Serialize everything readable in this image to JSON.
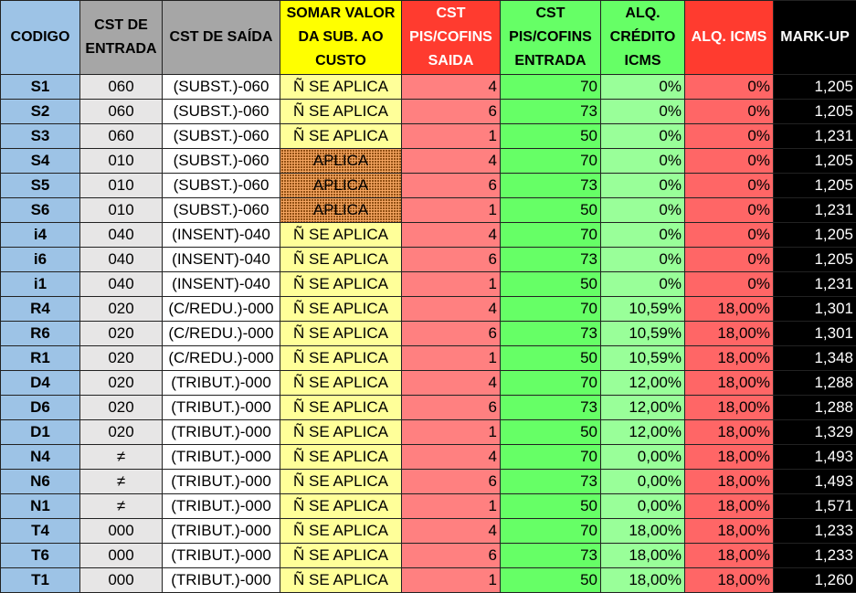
{
  "headers": {
    "codigo": "CODIGO",
    "cst_entrada": "CST DE ENTRADA",
    "cst_saida": "CST  DE SAÍDA",
    "somar": "SOMAR VALOR DA SUB. AO CUSTO",
    "cst_piscofins_saida": "CST PIS/COFINS SAIDA",
    "cst_piscofins_entrada": "CST PIS/COFINS ENTRADA",
    "alq_credito_icms": "ALQ. CRÉDITO ICMS",
    "alq_icms": "ALQ. ICMS",
    "markup": "MARK-UP"
  },
  "rows": [
    {
      "codigo": "S1",
      "cst_entrada": "060",
      "cst_saida": "(SUBST.)-060",
      "somar": "Ñ SE APLICA",
      "cst_piscofins_saida": "4",
      "cst_piscofins_entrada": "70",
      "alq_credito_icms": "0%",
      "alq_icms": "0%",
      "markup": "1,205"
    },
    {
      "codigo": "S2",
      "cst_entrada": "060",
      "cst_saida": "(SUBST.)-060",
      "somar": "Ñ SE APLICA",
      "cst_piscofins_saida": "6",
      "cst_piscofins_entrada": "73",
      "alq_credito_icms": "0%",
      "alq_icms": "0%",
      "markup": "1,205"
    },
    {
      "codigo": "S3",
      "cst_entrada": "060",
      "cst_saida": "(SUBST.)-060",
      "somar": "Ñ SE APLICA",
      "cst_piscofins_saida": "1",
      "cst_piscofins_entrada": "50",
      "alq_credito_icms": "0%",
      "alq_icms": "0%",
      "markup": "1,231"
    },
    {
      "codigo": "S4",
      "cst_entrada": "010",
      "cst_saida": "(SUBST.)-060",
      "somar": "APLICA",
      "cst_piscofins_saida": "4",
      "cst_piscofins_entrada": "70",
      "alq_credito_icms": "0%",
      "alq_icms": "0%",
      "markup": "1,205"
    },
    {
      "codigo": "S5",
      "cst_entrada": "010",
      "cst_saida": "(SUBST.)-060",
      "somar": "APLICA",
      "cst_piscofins_saida": "6",
      "cst_piscofins_entrada": "73",
      "alq_credito_icms": "0%",
      "alq_icms": "0%",
      "markup": "1,205"
    },
    {
      "codigo": "S6",
      "cst_entrada": "010",
      "cst_saida": "(SUBST.)-060",
      "somar": "APLICA",
      "cst_piscofins_saida": "1",
      "cst_piscofins_entrada": "50",
      "alq_credito_icms": "0%",
      "alq_icms": "0%",
      "markup": "1,231"
    },
    {
      "codigo": "i4",
      "cst_entrada": "040",
      "cst_saida": "(INSENT)-040",
      "somar": "Ñ SE APLICA",
      "cst_piscofins_saida": "4",
      "cst_piscofins_entrada": "70",
      "alq_credito_icms": "0%",
      "alq_icms": "0%",
      "markup": "1,205"
    },
    {
      "codigo": "i6",
      "cst_entrada": "040",
      "cst_saida": "(INSENT)-040",
      "somar": "Ñ SE APLICA",
      "cst_piscofins_saida": "6",
      "cst_piscofins_entrada": "73",
      "alq_credito_icms": "0%",
      "alq_icms": "0%",
      "markup": "1,205"
    },
    {
      "codigo": "i1",
      "cst_entrada": "040",
      "cst_saida": "(INSENT)-040",
      "somar": "Ñ SE APLICA",
      "cst_piscofins_saida": "1",
      "cst_piscofins_entrada": "50",
      "alq_credito_icms": "0%",
      "alq_icms": "0%",
      "markup": "1,231"
    },
    {
      "codigo": "R4",
      "cst_entrada": "020",
      "cst_saida": "(C/REDU.)-000",
      "somar": "Ñ SE APLICA",
      "cst_piscofins_saida": "4",
      "cst_piscofins_entrada": "70",
      "alq_credito_icms": "10,59%",
      "alq_icms": "18,00%",
      "markup": "1,301"
    },
    {
      "codigo": "R6",
      "cst_entrada": "020",
      "cst_saida": "(C/REDU.)-000",
      "somar": "Ñ SE APLICA",
      "cst_piscofins_saida": "6",
      "cst_piscofins_entrada": "73",
      "alq_credito_icms": "10,59%",
      "alq_icms": "18,00%",
      "markup": "1,301"
    },
    {
      "codigo": "R1",
      "cst_entrada": "020",
      "cst_saida": "(C/REDU.)-000",
      "somar": "Ñ SE APLICA",
      "cst_piscofins_saida": "1",
      "cst_piscofins_entrada": "50",
      "alq_credito_icms": "10,59%",
      "alq_icms": "18,00%",
      "markup": "1,348"
    },
    {
      "codigo": "D4",
      "cst_entrada": "020",
      "cst_saida": "(TRIBUT.)-000",
      "somar": "Ñ SE APLICA",
      "cst_piscofins_saida": "4",
      "cst_piscofins_entrada": "70",
      "alq_credito_icms": "12,00%",
      "alq_icms": "18,00%",
      "markup": "1,288"
    },
    {
      "codigo": "D6",
      "cst_entrada": "020",
      "cst_saida": "(TRIBUT.)-000",
      "somar": "Ñ SE APLICA",
      "cst_piscofins_saida": "6",
      "cst_piscofins_entrada": "73",
      "alq_credito_icms": "12,00%",
      "alq_icms": "18,00%",
      "markup": "1,288"
    },
    {
      "codigo": "D1",
      "cst_entrada": "020",
      "cst_saida": "(TRIBUT.)-000",
      "somar": "Ñ SE APLICA",
      "cst_piscofins_saida": "1",
      "cst_piscofins_entrada": "50",
      "alq_credito_icms": "12,00%",
      "alq_icms": "18,00%",
      "markup": "1,329"
    },
    {
      "codigo": "N4",
      "cst_entrada": "≠",
      "cst_saida": "(TRIBUT.)-000",
      "somar": "Ñ SE APLICA",
      "cst_piscofins_saida": "4",
      "cst_piscofins_entrada": "70",
      "alq_credito_icms": "0,00%",
      "alq_icms": "18,00%",
      "markup": "1,493"
    },
    {
      "codigo": "N6",
      "cst_entrada": "≠",
      "cst_saida": "(TRIBUT.)-000",
      "somar": "Ñ SE APLICA",
      "cst_piscofins_saida": "6",
      "cst_piscofins_entrada": "73",
      "alq_credito_icms": "0,00%",
      "alq_icms": "18,00%",
      "markup": "1,493"
    },
    {
      "codigo": "N1",
      "cst_entrada": "≠",
      "cst_saida": "(TRIBUT.)-000",
      "somar": "Ñ SE APLICA",
      "cst_piscofins_saida": "1",
      "cst_piscofins_entrada": "50",
      "alq_credito_icms": "0,00%",
      "alq_icms": "18,00%",
      "markup": "1,571"
    },
    {
      "codigo": "T4",
      "cst_entrada": "000",
      "cst_saida": "(TRIBUT.)-000",
      "somar": "Ñ SE APLICA",
      "cst_piscofins_saida": "4",
      "cst_piscofins_entrada": "70",
      "alq_credito_icms": "18,00%",
      "alq_icms": "18,00%",
      "markup": "1,233"
    },
    {
      "codigo": "T6",
      "cst_entrada": "000",
      "cst_saida": "(TRIBUT.)-000",
      "somar": "Ñ SE APLICA",
      "cst_piscofins_saida": "6",
      "cst_piscofins_entrada": "73",
      "alq_credito_icms": "18,00%",
      "alq_icms": "18,00%",
      "markup": "1,233"
    },
    {
      "codigo": "T1",
      "cst_entrada": "000",
      "cst_saida": "(TRIBUT.)-000",
      "somar": "Ñ SE APLICA",
      "cst_piscofins_saida": "1",
      "cst_piscofins_entrada": "50",
      "alq_credito_icms": "18,00%",
      "alq_icms": "18,00%",
      "markup": "1,260"
    }
  ]
}
